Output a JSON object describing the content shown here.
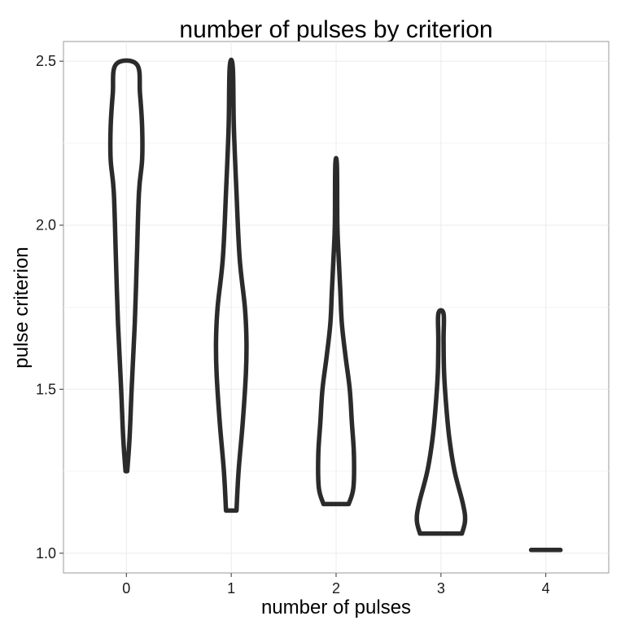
{
  "chart_data": {
    "type": "violin",
    "title": "number of pulses by criterion",
    "xlabel": "number of pulses",
    "ylabel": "pulse criterion",
    "categories": [
      "0",
      "1",
      "2",
      "3",
      "4"
    ],
    "yticks": [
      "1.0",
      "1.5",
      "2.0",
      "2.5"
    ],
    "ytick_values": [
      1.0,
      1.5,
      2.0,
      2.5
    ],
    "ylim": [
      0.94,
      2.56
    ],
    "grid": true,
    "outline_color": "#2b2b2b",
    "grid_color": "#ebebeb",
    "series": [
      {
        "category": "0",
        "ymin": 1.25,
        "ymax": 2.49,
        "profile": [
          [
            1.25,
            0.008
          ],
          [
            1.35,
            0.03
          ],
          [
            1.5,
            0.05
          ],
          [
            1.7,
            0.08
          ],
          [
            1.9,
            0.1
          ],
          [
            2.1,
            0.12
          ],
          [
            2.2,
            0.15
          ],
          [
            2.3,
            0.15
          ],
          [
            2.4,
            0.13
          ],
          [
            2.49,
            0.1
          ]
        ]
      },
      {
        "category": "1",
        "ymin": 1.13,
        "ymax": 2.48,
        "profile": [
          [
            1.13,
            0.05
          ],
          [
            1.25,
            0.07
          ],
          [
            1.4,
            0.11
          ],
          [
            1.55,
            0.14
          ],
          [
            1.65,
            0.145
          ],
          [
            1.75,
            0.13
          ],
          [
            1.9,
            0.08
          ],
          [
            2.1,
            0.05
          ],
          [
            2.3,
            0.025
          ],
          [
            2.48,
            0.015
          ]
        ]
      },
      {
        "category": "2",
        "ymin": 1.15,
        "ymax": 2.18,
        "profile": [
          [
            1.15,
            0.12
          ],
          [
            1.2,
            0.165
          ],
          [
            1.3,
            0.17
          ],
          [
            1.4,
            0.15
          ],
          [
            1.5,
            0.13
          ],
          [
            1.6,
            0.09
          ],
          [
            1.7,
            0.055
          ],
          [
            1.8,
            0.04
          ],
          [
            1.9,
            0.025
          ],
          [
            2.0,
            0.012
          ],
          [
            2.18,
            0.008
          ]
        ]
      },
      {
        "category": "3",
        "ymin": 1.06,
        "ymax": 1.73,
        "profile": [
          [
            1.06,
            0.2
          ],
          [
            1.1,
            0.23
          ],
          [
            1.15,
            0.21
          ],
          [
            1.25,
            0.13
          ],
          [
            1.35,
            0.08
          ],
          [
            1.45,
            0.05
          ],
          [
            1.55,
            0.03
          ],
          [
            1.65,
            0.025
          ],
          [
            1.73,
            0.025
          ]
        ]
      },
      {
        "category": "4",
        "ymin": 1.01,
        "ymax": 1.01,
        "profile": [
          [
            1.01,
            0.14
          ]
        ]
      }
    ]
  }
}
